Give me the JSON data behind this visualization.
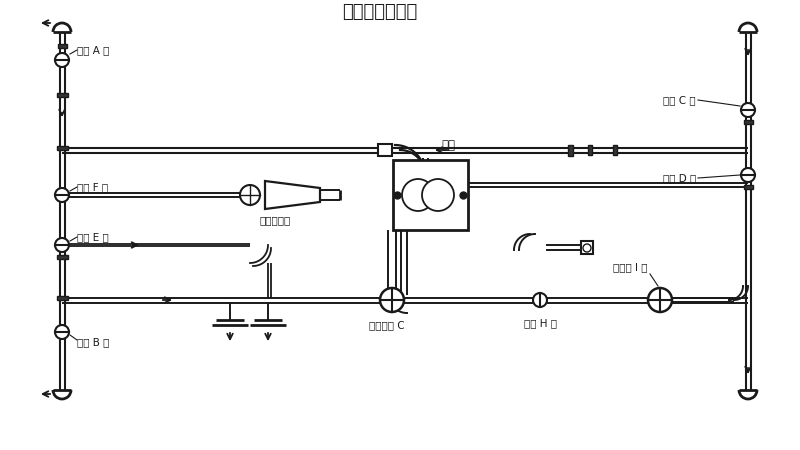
{
  "title": "洒水、浇灌花木",
  "bg_color": "#ffffff",
  "line_color": "#1a1a1a",
  "label_color": "#1a1a1a",
  "labels": {
    "valve_A": "球阀 A 开",
    "valve_B": "球阀 B 开",
    "valve_C": "球阀 C 开",
    "valve_D": "球阀 D 开",
    "valve_E": "球阀 E 开",
    "valve_F": "球阀 F 关",
    "valve_G": "三通球阀 C",
    "valve_H": "球阀 H 关",
    "valve_I": "消防栓 I 关",
    "pump": "水泵",
    "cannon": "洒水炮出口"
  },
  "label_fontsize": 7.5,
  "title_fontsize": 13
}
